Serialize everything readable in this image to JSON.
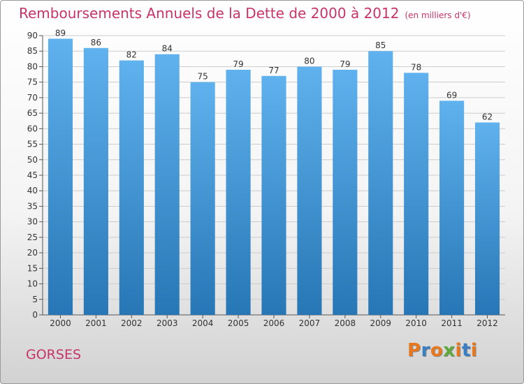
{
  "header": {
    "title": "Remboursements Annuels de la Dette de 2000 à 2012",
    "unit": "(en milliers d'€)"
  },
  "footer": {
    "city": "GORSES",
    "logo": "Proxiti"
  },
  "colors": {
    "title": "#c8346a",
    "bar_top": "#5fb2ee",
    "bar_bottom": "#2776b5",
    "grid": "#cccccc",
    "logo_letters": [
      "#e8781e",
      "#3a7fc1",
      "#e8781e",
      "#5fa83b",
      "#e8781e",
      "#3a7fc1",
      "#e8781e"
    ]
  },
  "chart_data": {
    "type": "bar",
    "categories": [
      "2000",
      "2001",
      "2002",
      "2003",
      "2004",
      "2005",
      "2006",
      "2007",
      "2008",
      "2009",
      "2010",
      "2011",
      "2012"
    ],
    "values": [
      89,
      86,
      82,
      84,
      75,
      79,
      77,
      80,
      79,
      85,
      78,
      69,
      62
    ],
    "ylim": [
      0,
      90
    ],
    "yticks": [
      0,
      5,
      10,
      15,
      20,
      25,
      30,
      35,
      40,
      45,
      50,
      55,
      60,
      65,
      70,
      75,
      80,
      85,
      90
    ],
    "grid": true,
    "data_labels": true
  }
}
